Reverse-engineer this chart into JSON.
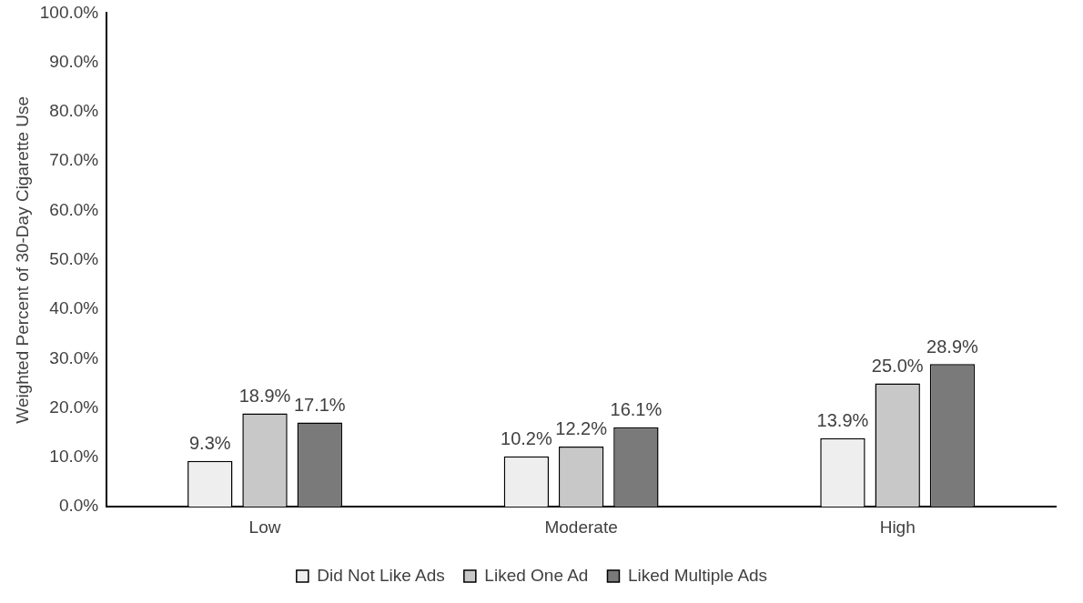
{
  "chart_data": {
    "type": "bar",
    "ylabel": "Weighted Percent of 30-Day Cigarette Use",
    "categories": [
      "Low",
      "Moderate",
      "High"
    ],
    "series": [
      {
        "name": "Did Not Like Ads",
        "color": "#eeeeee",
        "values": [
          9.3,
          10.2,
          13.9
        ],
        "value_labels": [
          "9.3%",
          "10.2%",
          "13.9%"
        ]
      },
      {
        "name": "Liked One Ad",
        "color": "#c8c8c8",
        "values": [
          18.9,
          12.2,
          25.0
        ],
        "value_labels": [
          "18.9%",
          "12.2%",
          "25.0%"
        ]
      },
      {
        "name": "Liked Multiple Ads",
        "color": "#7a7a7a",
        "values": [
          17.1,
          16.1,
          28.9
        ],
        "value_labels": [
          "17.1%",
          "16.1%",
          "28.9%"
        ]
      }
    ],
    "ylim": [
      0,
      100
    ],
    "yticks": [
      {
        "value": 0,
        "label": "0.0%"
      },
      {
        "value": 10,
        "label": "10.0%"
      },
      {
        "value": 20,
        "label": "20.0%"
      },
      {
        "value": 30,
        "label": "30.0%"
      },
      {
        "value": 40,
        "label": "40.0%"
      },
      {
        "value": 50,
        "label": "50.0%"
      },
      {
        "value": 60,
        "label": "60.0%"
      },
      {
        "value": 70,
        "label": "70.0%"
      },
      {
        "value": 80,
        "label": "80.0%"
      },
      {
        "value": 90,
        "label": "90.0%"
      },
      {
        "value": 100,
        "label": "100.0%"
      }
    ],
    "grid": false,
    "legend": "bottom"
  }
}
